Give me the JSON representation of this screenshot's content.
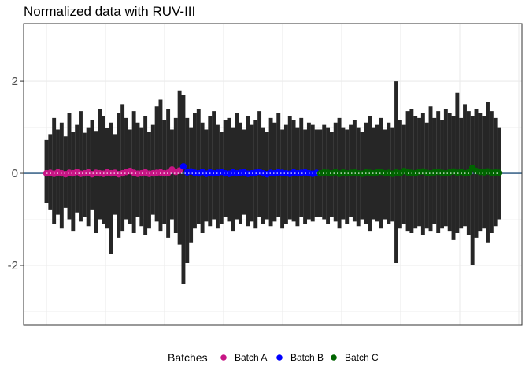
{
  "chart_data": {
    "type": "line",
    "title": "Normalized data with RUV-III",
    "xlabel": "",
    "ylabel": "",
    "ylim": [
      -3.3,
      3.25
    ],
    "y_ticks": [
      -2,
      0,
      2
    ],
    "y_tick_labels": [
      "-2",
      "0",
      "2"
    ],
    "x_count": 120,
    "reference_lines": [
      0
    ],
    "grid": true,
    "legend": {
      "title": "Batches",
      "position": "bottom",
      "entries": [
        {
          "name": "Batch A",
          "color": "#c71585"
        },
        {
          "name": "Batch B",
          "color": "#0000ff"
        },
        {
          "name": "Batch C",
          "color": "#006400"
        }
      ]
    },
    "series": [
      {
        "name": "Batch A",
        "color": "#c71585",
        "x": [
          1,
          2,
          3,
          4,
          5,
          6,
          7,
          8,
          9,
          10,
          11,
          12,
          13,
          14,
          15,
          16,
          17,
          18,
          19,
          20,
          21,
          22,
          23,
          24,
          25,
          26,
          27,
          28,
          29,
          30,
          31,
          32,
          33,
          34,
          35,
          36
        ],
        "median": [
          0.0,
          0.01,
          -0.01,
          0.02,
          0.0,
          -0.02,
          0.01,
          0.0,
          0.03,
          -0.01,
          0.0,
          0.02,
          -0.02,
          0.01,
          0.0,
          -0.01,
          0.02,
          0.0,
          0.01,
          -0.02,
          0.0,
          0.03,
          0.05,
          0.01,
          -0.01,
          0.0,
          0.02,
          -0.01,
          0.0,
          0.01,
          0.02,
          0.0,
          0.01,
          0.08,
          0.03,
          0.06
        ],
        "upper": [
          0.72,
          0.85,
          1.2,
          0.95,
          1.1,
          0.8,
          1.3,
          0.9,
          1.05,
          1.35,
          0.88,
          1.0,
          1.15,
          0.92,
          1.4,
          1.25,
          0.98,
          1.1,
          0.85,
          1.3,
          1.5,
          1.2,
          0.95,
          1.35,
          1.1,
          1.0,
          1.25,
          0.9,
          1.05,
          1.45,
          1.6,
          1.15,
          1.4,
          0.95,
          1.2,
          1.8
        ],
        "lower": [
          -0.65,
          -0.8,
          -1.1,
          -0.9,
          -1.2,
          -0.75,
          -1.0,
          -1.25,
          -0.85,
          -1.05,
          -0.95,
          -1.15,
          -0.8,
          -1.3,
          -1.0,
          -1.1,
          -1.2,
          -1.75,
          -0.9,
          -1.4,
          -1.25,
          -1.0,
          -1.1,
          -1.3,
          -0.95,
          -1.15,
          -1.35,
          -1.2,
          -0.9,
          -1.05,
          -1.25,
          -1.1,
          -1.4,
          -1.0,
          -1.3,
          -1.55
        ]
      },
      {
        "name": "Batch B",
        "color": "#0000ff",
        "x": [
          37,
          38,
          39,
          40,
          41,
          42,
          43,
          44,
          45,
          46,
          47,
          48,
          49,
          50,
          51,
          52,
          53,
          54,
          55,
          56,
          57,
          58,
          59,
          60,
          61,
          62,
          63,
          64,
          65,
          66,
          67,
          68,
          69,
          70,
          71,
          72
        ],
        "median": [
          0.15,
          0.02,
          0.04,
          0.01,
          0.0,
          0.03,
          -0.01,
          0.02,
          0.0,
          0.01,
          0.03,
          0.0,
          -0.01,
          0.02,
          0.0,
          0.01,
          0.02,
          -0.01,
          0.0,
          0.01,
          0.03,
          0.0,
          -0.02,
          0.01,
          0.0,
          0.02,
          0.01,
          0.0,
          -0.01,
          0.02,
          0.0,
          0.01,
          0.02,
          0.0,
          -0.01,
          0.01
        ],
        "upper": [
          1.7,
          1.2,
          1.0,
          1.3,
          1.4,
          1.1,
          0.95,
          1.25,
          1.35,
          1.05,
          0.9,
          1.15,
          1.2,
          1.0,
          1.3,
          1.1,
          0.95,
          1.25,
          1.05,
          1.15,
          1.35,
          1.0,
          0.9,
          1.2,
          1.1,
          1.3,
          0.95,
          1.05,
          1.25,
          1.15,
          1.0,
          1.2,
          0.95,
          1.1,
          1.05,
          0.95
        ],
        "lower": [
          -2.4,
          -1.95,
          -1.5,
          -1.2,
          -1.1,
          -1.3,
          -1.05,
          -1.15,
          -1.0,
          -1.2,
          -1.1,
          -0.95,
          -1.05,
          -1.25,
          -1.0,
          -1.1,
          -0.9,
          -1.15,
          -1.05,
          -1.2,
          -0.95,
          -1.1,
          -1.0,
          -1.15,
          -1.05,
          -0.95,
          -1.2,
          -1.1,
          -1.0,
          -1.05,
          -1.15,
          -0.95,
          -1.1,
          -1.0,
          -1.05,
          -0.95
        ]
      },
      {
        "name": "Batch C",
        "color": "#006400",
        "x": [
          73,
          74,
          75,
          76,
          77,
          78,
          79,
          80,
          81,
          82,
          83,
          84,
          85,
          86,
          87,
          88,
          89,
          90,
          91,
          92,
          93,
          94,
          95,
          96,
          97,
          98,
          99,
          100,
          101,
          102,
          103,
          104,
          105,
          106,
          107,
          108,
          109,
          110,
          111,
          112,
          113,
          114,
          115,
          116,
          117,
          118,
          119,
          120
        ],
        "median": [
          0.0,
          0.02,
          0.01,
          0.0,
          0.03,
          -0.01,
          0.02,
          0.0,
          0.01,
          0.02,
          0.0,
          -0.01,
          0.02,
          0.01,
          0.0,
          0.02,
          0.03,
          0.0,
          0.01,
          -0.01,
          0.02,
          0.0,
          0.05,
          0.02,
          0.01,
          0.0,
          0.03,
          0.04,
          0.01,
          0.0,
          0.02,
          0.03,
          0.01,
          0.0,
          0.02,
          0.04,
          0.01,
          0.03,
          0.0,
          0.02,
          0.12,
          0.05,
          0.03,
          0.02,
          0.04,
          0.01,
          0.02,
          0.01
        ],
        "upper": [
          0.95,
          1.05,
          1.0,
          0.9,
          1.1,
          1.2,
          1.0,
          0.95,
          1.05,
          1.15,
          1.0,
          0.9,
          1.1,
          1.25,
          1.0,
          1.05,
          1.2,
          0.95,
          1.1,
          1.0,
          2.0,
          1.15,
          1.05,
          1.35,
          1.4,
          1.25,
          1.2,
          1.3,
          1.1,
          1.45,
          1.2,
          1.35,
          1.15,
          1.4,
          1.3,
          1.25,
          1.75,
          1.2,
          1.5,
          1.35,
          1.25,
          1.4,
          1.3,
          1.25,
          1.55,
          1.35,
          1.2,
          1.0
        ],
        "lower": [
          -0.95,
          -1.0,
          -1.1,
          -0.95,
          -1.05,
          -1.2,
          -1.0,
          -1.1,
          -0.95,
          -1.05,
          -1.15,
          -1.0,
          -1.1,
          -1.25,
          -1.0,
          -1.05,
          -1.2,
          -1.0,
          -1.1,
          -1.05,
          -1.95,
          -1.2,
          -1.1,
          -1.25,
          -1.3,
          -1.2,
          -1.15,
          -1.35,
          -1.2,
          -1.25,
          -1.1,
          -1.3,
          -1.2,
          -1.15,
          -1.25,
          -1.45,
          -1.3,
          -1.2,
          -1.15,
          -1.35,
          -2.0,
          -1.4,
          -1.25,
          -1.2,
          -1.5,
          -1.3,
          -1.15,
          -1.0
        ]
      }
    ]
  }
}
